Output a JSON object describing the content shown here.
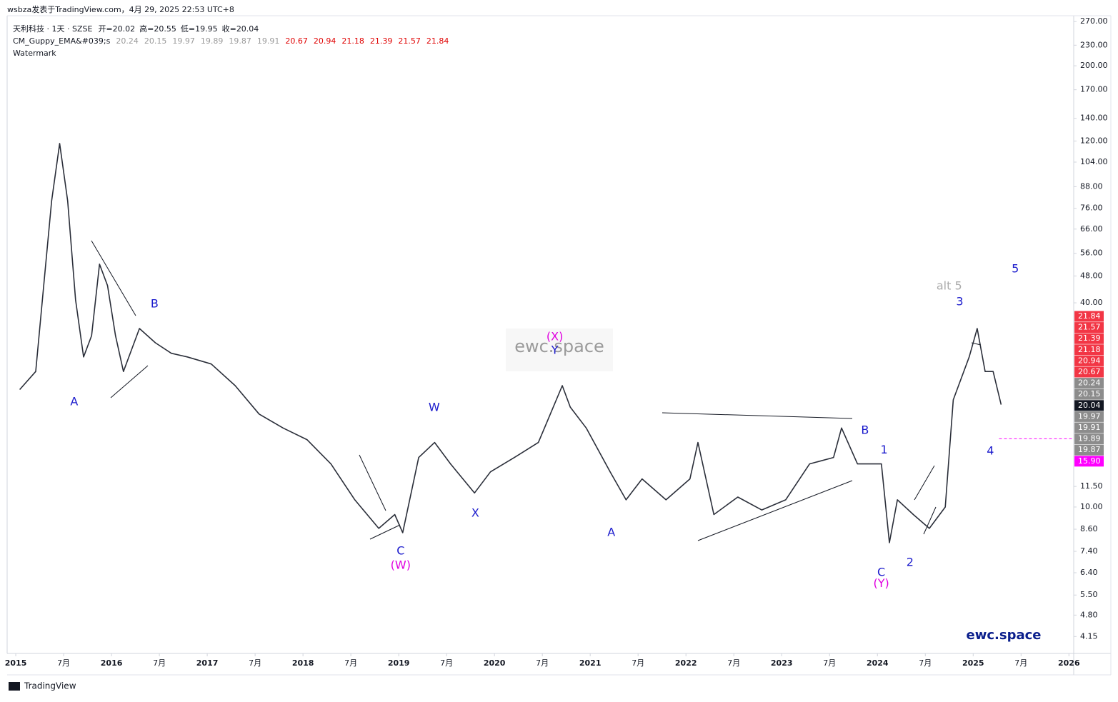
{
  "page": {
    "byline": "wsbza发表于TradingView.com，4月 29, 2025 22:53 UTC+8",
    "footer": "TradingView",
    "legend_extra": "Watermark",
    "watermark": "ewc.space",
    "brand": "ewc.space"
  },
  "chart_data": {
    "type": "line",
    "title": "天利科技 · 1天 · SZSE",
    "ohlc": [
      {
        "label": "开=",
        "value": 20.02
      },
      {
        "label": "高=",
        "value": 20.55
      },
      {
        "label": "低=",
        "value": 19.95
      },
      {
        "label": "收=",
        "value": 20.04
      }
    ],
    "indicator": {
      "name": "CM_Guppy_EMA&#039;s",
      "values": [
        20.24,
        20.15,
        19.97,
        19.89,
        19.87,
        19.91,
        20.67,
        20.94,
        21.18,
        21.39,
        21.57,
        21.84
      ],
      "colors": [
        "#999999",
        "#999999",
        "#999999",
        "#999999",
        "#999999",
        "#999999",
        "#e00000",
        "#e00000",
        "#e00000",
        "#e00000",
        "#e00000",
        "#e00000"
      ]
    },
    "x": [
      "2015-01",
      "2015-03",
      "2015-04",
      "2015-05",
      "2015-06",
      "2015-07",
      "2015-08",
      "2015-09",
      "2015-10",
      "2015-11",
      "2015-12",
      "2016-01",
      "2016-02",
      "2016-04",
      "2016-06",
      "2016-08",
      "2016-10",
      "2017-01",
      "2017-04",
      "2017-07",
      "2017-10",
      "2018-01",
      "2018-04",
      "2018-07",
      "2018-10",
      "2018-12",
      "2019-01",
      "2019-03",
      "2019-05",
      "2019-07",
      "2019-10",
      "2019-12",
      "2020-03",
      "2020-06",
      "2020-09",
      "2020-10",
      "2020-12",
      "2021-03",
      "2021-05",
      "2021-07",
      "2021-10",
      "2022-01",
      "2022-02",
      "2022-04",
      "2022-07",
      "2022-10",
      "2023-01",
      "2023-04",
      "2023-07",
      "2023-08",
      "2023-10",
      "2024-01",
      "2024-02",
      "2024-03",
      "2024-05",
      "2024-07",
      "2024-09",
      "2024-10",
      "2024-12",
      "2025-01",
      "2025-02",
      "2025-03",
      "2025-04"
    ],
    "values": [
      22.2,
      25.1,
      45,
      80,
      118,
      80,
      40.8,
      27.7,
      32,
      52,
      45,
      32,
      25.1,
      33.6,
      30.5,
      28.4,
      27.7,
      26.4,
      22.8,
      18.8,
      17.1,
      15.8,
      13.4,
      10.5,
      8.65,
      9.5,
      8.4,
      14,
      15.5,
      13.4,
      11,
      12.7,
      14,
      15.5,
      22.8,
      19.7,
      17.1,
      12.7,
      10.5,
      12.1,
      10.5,
      12.1,
      15.5,
      9.5,
      10.7,
      9.8,
      10.5,
      13.4,
      14,
      17.1,
      13.4,
      13.4,
      7.85,
      10.5,
      9.5,
      8.65,
      10,
      20.7,
      27.7,
      33.6,
      25.1,
      25.1,
      20.04
    ],
    "color": "#2a2e39",
    "log_scale": true,
    "xlim": [
      2014.91,
      2026.05
    ],
    "xticks": [
      2015,
      {
        "value": 2015.5,
        "label": "7月"
      },
      2016,
      {
        "value": 2016.5,
        "label": "7月"
      },
      2017,
      {
        "value": 2017.5,
        "label": "7月"
      },
      2018,
      {
        "value": 2018.5,
        "label": "7月"
      },
      2019,
      {
        "value": 2019.5,
        "label": "7月"
      },
      2020,
      {
        "value": 2020.5,
        "label": "7月"
      },
      2021,
      {
        "value": 2021.5,
        "label": "7月"
      },
      2022,
      {
        "value": 2022.5,
        "label": "7月"
      },
      2023,
      {
        "value": 2023.5,
        "label": "7月"
      },
      2024,
      {
        "value": 2024.5,
        "label": "7月"
      },
      2025,
      {
        "value": 2025.5,
        "label": "7月"
      },
      2026
    ],
    "ylim": [
      3.7,
      281
    ],
    "yticks": [
      {
        "value": 270,
        "label": "270.00"
      },
      {
        "value": 230,
        "label": "230.00"
      },
      {
        "value": 200,
        "label": "200.00"
      },
      {
        "value": 170,
        "label": "170.00"
      },
      {
        "value": 140,
        "label": "140.00"
      },
      {
        "value": 120,
        "label": "120.00"
      },
      {
        "value": 104,
        "label": "104.00"
      },
      {
        "value": 88,
        "label": "88.00"
      },
      {
        "value": 76,
        "label": "76.00"
      },
      {
        "value": 66,
        "label": "66.00"
      },
      {
        "value": 56,
        "label": "56.00"
      },
      {
        "value": 48,
        "label": "48.00"
      },
      {
        "value": 40,
        "label": "40.00"
      },
      {
        "value": 11.5,
        "label": "11.50"
      },
      {
        "value": 10,
        "label": "10.00"
      },
      {
        "value": 8.6,
        "label": "8.60"
      },
      {
        "value": 7.4,
        "label": "7.40"
      },
      {
        "value": 6.4,
        "label": "6.40"
      },
      {
        "value": 5.5,
        "label": "5.50"
      },
      {
        "value": 4.8,
        "label": "4.80"
      },
      {
        "value": 4.15,
        "label": "4.15"
      }
    ],
    "price_tags": [
      {
        "value": 21.84,
        "color": "#f23645"
      },
      {
        "value": 21.57,
        "color": "#f23645"
      },
      {
        "value": 21.39,
        "color": "#f23645"
      },
      {
        "value": 21.18,
        "color": "#f23645"
      },
      {
        "value": 20.94,
        "color": "#f23645"
      },
      {
        "value": 20.67,
        "color": "#f23645"
      },
      {
        "value": 20.24,
        "color": "#8c8c8c"
      },
      {
        "value": 20.15,
        "color": "#8c8c8c"
      },
      {
        "value": 20.04,
        "color": "#131722"
      },
      {
        "value": 19.97,
        "color": "#8c8c8c"
      },
      {
        "value": 19.91,
        "color": "#8c8c8c"
      },
      {
        "value": 19.89,
        "color": "#8c8c8c"
      },
      {
        "value": 19.87,
        "color": "#8c8c8c"
      },
      {
        "value": 15.9,
        "label": "15.90",
        "color": "#ff00ff"
      }
    ],
    "hline": {
      "value": 15.9,
      "color": "#ff00ff",
      "x_from": 2025.27
    },
    "annotations": [
      {
        "text": "A",
        "x": 2015.61,
        "y": 20.4,
        "color": "#1a1acc"
      },
      {
        "text": "B",
        "x": 2016.45,
        "y": 39.6,
        "color": "#1a1acc"
      },
      {
        "text": "C",
        "x": 2019.02,
        "y": 7.4,
        "color": "#1a1acc"
      },
      {
        "text": "(W)",
        "x": 2019.02,
        "y": 6.72,
        "color": "#e000e0"
      },
      {
        "text": "W",
        "x": 2019.37,
        "y": 19.6,
        "color": "#1a1acc"
      },
      {
        "text": "X",
        "x": 2019.8,
        "y": 9.58,
        "color": "#1a1acc"
      },
      {
        "text": "Y",
        "x": 2020.63,
        "y": 28.9,
        "color": "#1a1acc"
      },
      {
        "text": "(X)",
        "x": 2020.63,
        "y": 31.7,
        "color": "#e000e0"
      },
      {
        "text": "A",
        "x": 2021.22,
        "y": 8.4,
        "color": "#1a1acc"
      },
      {
        "text": "B",
        "x": 2023.87,
        "y": 16.8,
        "color": "#1a1acc"
      },
      {
        "text": "1",
        "x": 2024.07,
        "y": 14.7,
        "color": "#1a1acc"
      },
      {
        "text": "C",
        "x": 2024.04,
        "y": 6.4,
        "color": "#1a1acc"
      },
      {
        "text": "(Y)",
        "x": 2024.04,
        "y": 5.93,
        "color": "#e000e0"
      },
      {
        "text": "2",
        "x": 2024.34,
        "y": 6.85,
        "color": "#1a1acc"
      },
      {
        "text": "3",
        "x": 2024.86,
        "y": 40.2,
        "color": "#1a1acc"
      },
      {
        "text": "alt 5",
        "x": 2024.75,
        "y": 44.7,
        "color": "#aaaaaa"
      },
      {
        "text": "4",
        "x": 2025.18,
        "y": 14.6,
        "color": "#1a1acc"
      },
      {
        "text": "5",
        "x": 2025.44,
        "y": 50.2,
        "color": "#1a1acc"
      }
    ]
  }
}
